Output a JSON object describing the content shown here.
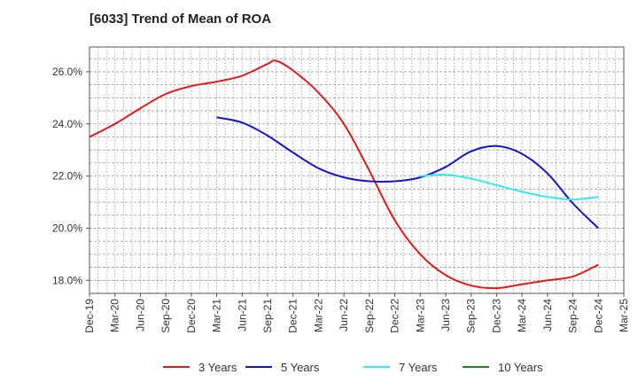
{
  "chart_data": {
    "type": "line",
    "title": "[6033]  Trend of Mean of ROA",
    "xlabel": "",
    "ylabel": "",
    "y_tick_format": "percent_1dp",
    "ylim": [
      17.5,
      26.95
    ],
    "y_ticks": [
      18.0,
      20.0,
      22.0,
      24.0,
      26.0
    ],
    "x_ticks": [
      "Dec-19",
      "Mar-20",
      "Jun-20",
      "Sep-20",
      "Dec-20",
      "Mar-21",
      "Jun-21",
      "Sep-21",
      "Dec-21",
      "Mar-22",
      "Jun-22",
      "Sep-22",
      "Dec-22",
      "Mar-23",
      "Jun-23",
      "Sep-23",
      "Dec-23",
      "Mar-24",
      "Jun-24",
      "Sep-24",
      "Dec-24",
      "Mar-25"
    ],
    "grid": true,
    "legend_position": "bottom",
    "series": [
      {
        "name": "3 Years",
        "color": "#e01b1b",
        "points": [
          [
            "Dec-19",
            23.5
          ],
          [
            "Mar-20",
            24.0
          ],
          [
            "Jun-20",
            24.6
          ],
          [
            "Sep-20",
            25.15
          ],
          [
            "Dec-20",
            25.45
          ],
          [
            "Mar-21",
            25.62
          ],
          [
            "Jun-21",
            25.85
          ],
          [
            "Sep-21",
            26.3
          ],
          [
            "Oct-21",
            26.42
          ],
          [
            "Dec-21",
            26.05
          ],
          [
            "Mar-22",
            25.2
          ],
          [
            "Jun-22",
            24.0
          ],
          [
            "Sep-22",
            22.2
          ],
          [
            "Dec-22",
            20.3
          ],
          [
            "Mar-23",
            19.0
          ],
          [
            "Jun-23",
            18.2
          ],
          [
            "Sep-23",
            17.8
          ],
          [
            "Dec-23",
            17.7
          ],
          [
            "Mar-24",
            17.85
          ],
          [
            "Jun-24",
            18.0
          ],
          [
            "Sep-24",
            18.15
          ],
          [
            "Dec-24",
            18.6
          ]
        ]
      },
      {
        "name": "5 Years",
        "color": "#1515c8",
        "points": [
          [
            "Mar-21",
            24.25
          ],
          [
            "Jun-21",
            24.05
          ],
          [
            "Sep-21",
            23.55
          ],
          [
            "Dec-21",
            22.9
          ],
          [
            "Mar-22",
            22.3
          ],
          [
            "Jun-22",
            21.95
          ],
          [
            "Sep-22",
            21.8
          ],
          [
            "Dec-22",
            21.8
          ],
          [
            "Mar-23",
            21.95
          ],
          [
            "Jun-23",
            22.35
          ],
          [
            "Sep-23",
            22.95
          ],
          [
            "Dec-23",
            23.15
          ],
          [
            "Mar-24",
            22.85
          ],
          [
            "Jun-24",
            22.1
          ],
          [
            "Sep-24",
            20.95
          ],
          [
            "Dec-24",
            20.0
          ]
        ]
      },
      {
        "name": "7 Years",
        "color": "#33e8ee",
        "points": [
          [
            "Mar-23",
            22.0
          ],
          [
            "Jun-23",
            22.05
          ],
          [
            "Sep-23",
            21.9
          ],
          [
            "Dec-23",
            21.65
          ],
          [
            "Mar-24",
            21.4
          ],
          [
            "Jun-24",
            21.2
          ],
          [
            "Sep-24",
            21.1
          ],
          [
            "Dec-24",
            21.2
          ]
        ]
      },
      {
        "name": "10 Years",
        "color": "#1e8a1e",
        "points": []
      }
    ]
  }
}
